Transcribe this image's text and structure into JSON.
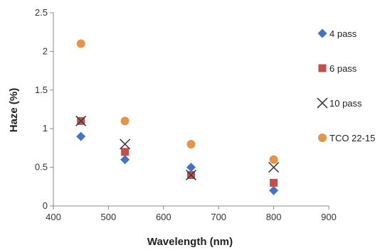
{
  "chart_data": {
    "type": "scatter",
    "xlabel": "Wavelength (nm)",
    "ylabel": "Haze (%)",
    "xlim": [
      400,
      900
    ],
    "ylim": [
      0,
      2.5
    ],
    "xticks": [
      400,
      500,
      600,
      700,
      800,
      900
    ],
    "yticks": [
      0,
      0.5,
      1,
      1.5,
      2,
      2.5
    ],
    "ytick_labels": [
      "0",
      "0.5",
      "1",
      "1.5",
      "2",
      "2.5"
    ],
    "grid": false,
    "legend_position": "right",
    "series": [
      {
        "name": "4 pass",
        "marker": "diamond",
        "color": "#4472C4",
        "x": [
          450,
          530,
          650,
          800
        ],
        "y": [
          0.9,
          0.6,
          0.5,
          0.2
        ]
      },
      {
        "name": "6 pass",
        "marker": "square",
        "color": "#C0504D",
        "x": [
          450,
          530,
          650,
          800
        ],
        "y": [
          1.1,
          0.7,
          0.4,
          0.3
        ]
      },
      {
        "name": "10 pass",
        "marker": "x",
        "color": "#404040",
        "x": [
          450,
          530,
          650,
          800
        ],
        "y": [
          1.1,
          0.8,
          0.4,
          0.5
        ]
      },
      {
        "name": "TCO 22-15",
        "marker": "circle",
        "color": "#E5954A",
        "x": [
          450,
          530,
          650,
          800
        ],
        "y": [
          2.1,
          1.1,
          0.8,
          0.6
        ]
      }
    ]
  }
}
